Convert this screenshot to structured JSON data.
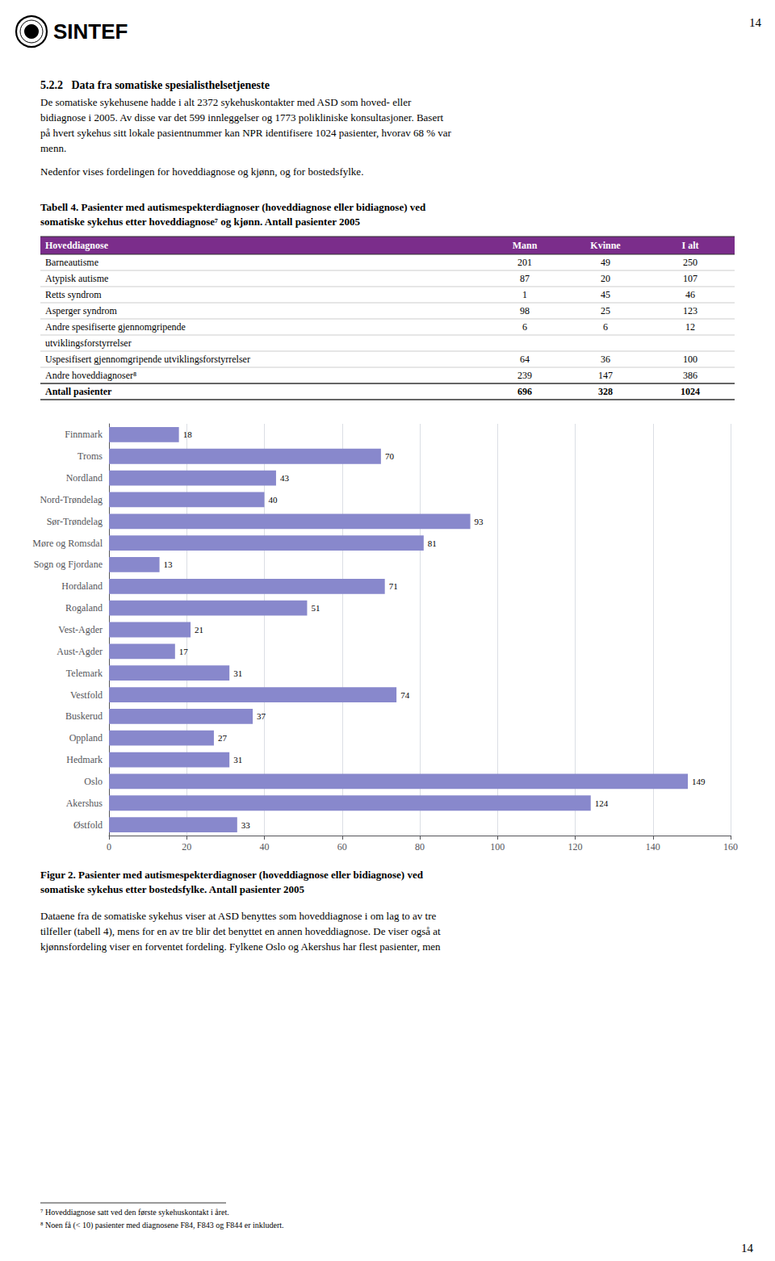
{
  "chart_data": [
    {
      "type": "table",
      "title": "Tabell 4. Pasienter med autismespekterdiagnoser (hoveddiagnose eller bidiagnose) ved\nsomatiske sykehus etter hoveddiagnose⁷ og kjønn. Antall pasienter 2005",
      "color": "#7B2D8B",
      "columns": [
        "Hoveddiagnose",
        "Mann",
        "Kvinne",
        "I alt"
      ],
      "rows": [
        [
          "Barneautisme",
          201,
          49,
          250
        ],
        [
          "Atypisk autisme",
          87,
          20,
          107
        ],
        [
          "Retts syndrom",
          1,
          45,
          46
        ],
        [
          "Asperger syndrom",
          98,
          25,
          123
        ],
        [
          "Andre spesifiserte gjennomgripende",
          6,
          6,
          12
        ],
        [
          "utviklingsforstyrrelser",
          null,
          null,
          null
        ],
        [
          "Uspesifisert gjennomgripende utviklingsforstyrrelser",
          64,
          36,
          100
        ],
        [
          "Andre hoveddiagnoser⁸",
          239,
          147,
          386
        ],
        [
          "Antall pasienter",
          696,
          328,
          1024
        ]
      ],
      "annotations": [
        "SINTEF",
        "14",
        "5.2.2   Data fra somatiske spesialisthelsetjeneste",
        "De somatiske sykehusene hadde i alt 2372 sykehuskontakter med ASD som hoved- eller",
        "bidiagnose i 2005. Av disse var det 599 innleggelser og 1773 polikliniske konsultasjoner. Basert",
        "på hvert sykehus sitt lokale pasientnummer kan NPR identifisere 1024 pasienter, hvorav 68 % var",
        "menn.",
        "Nedenfor vises fordelingen for hoveddiagnose og kjønn, og for bostedsfylke."
      ]
    },
    {
      "type": "bar",
      "title": "Figur 2. Pasienter med autismespekterdiagnoser (hoveddiagnose eller bidiagnose) ved\nsomatiske sykehus etter bostedsfylke. Antall pasienter 2005",
      "orientation": "horizontal",
      "categories": [
        "Finnmark",
        "Troms",
        "Nordland",
        "Nord-Trøndelag",
        "Sør-Trøndelag",
        "Møre og Romsdal",
        "Sogn og Fjordane",
        "Hordaland",
        "Rogaland",
        "Vest-Agder",
        "Aust-Agder",
        "Telemark",
        "Vestfold",
        "Buskerud",
        "Oppland",
        "Hedmark",
        "Oslo",
        "Akershus",
        "Østfold"
      ],
      "values": [
        18,
        70,
        43,
        40,
        93,
        81,
        13,
        71,
        51,
        21,
        17,
        31,
        74,
        37,
        27,
        31,
        149,
        124,
        33
      ],
      "color": "#8888CC",
      "xlim": [
        0,
        160
      ],
      "xticks": [
        0,
        20,
        40,
        60,
        80,
        100,
        120,
        140,
        160
      ],
      "grid": true,
      "data_labels": true,
      "annotations": [
        "Dataene fra de somatiske sykehus viser at ASD benyttes som hoveddiagnose i om lag to av tre",
        "tilfeller (tabell 4), mens for en av tre blir det benyttet en annen hoveddiagnose. De viser også at",
        "kjønnsfordeling viser en forventet fordeling. Fylkene Oslo og Akershus har flest pasienter, men",
        "⁷ Hoveddiagnose satt ved den første sykehuskontakt i året.",
        "⁸ Noen få (< 10) pasienter med diagnosene F84, F843 og F844 er inkludert.",
        "14"
      ]
    }
  ]
}
